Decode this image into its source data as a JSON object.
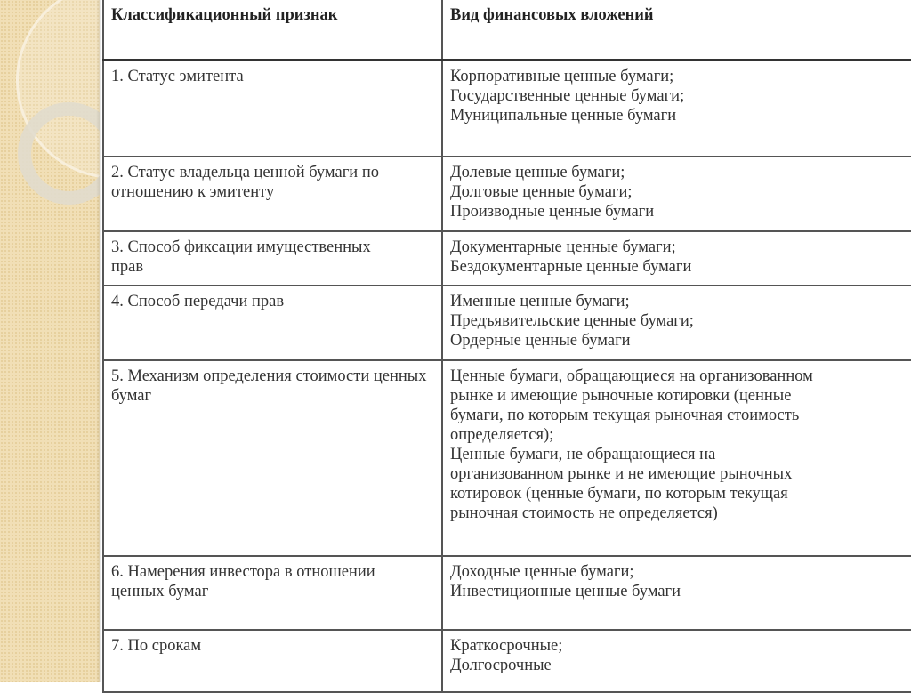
{
  "header": {
    "col1": "Классификационный признак",
    "col2": "Вид финансовых вложений"
  },
  "rows": [
    {
      "criterion": "1. Статус эмитента",
      "types": [
        "Корпоративные ценные бумаги;",
        "Государственные ценные бумаги;",
        "Муниципальные ценные бумаги"
      ]
    },
    {
      "criterion": "2. Статус владельца ценной бумаги по отношению к эмитенту",
      "types": [
        "Долевые ценные бумаги;",
        "Долговые ценные бумаги;",
        "Производные ценные бумаги"
      ]
    },
    {
      "criterion": "3. Способ фиксации имущественных прав",
      "types": [
        "Документарные ценные бумаги;",
        "Бездокументарные ценные бумаги"
      ]
    },
    {
      "criterion": "4. Способ передачи прав",
      "types": [
        "Именные ценные бумаги;",
        "Предъявительские ценные бумаги;",
        "Ордерные ценные бумаги"
      ]
    },
    {
      "criterion": "5. Механизм определения стоимости ценных бумаг",
      "types": [
        "Ценные бумаги, обращающиеся на организованном рынке и имеющие рыночные котировки (ценные бумаги, по которым текущая рыночная стоимость определяется);",
        "Ценные бумаги, не обращающиеся на организованном рынке и не имеющие рыночных котировок (ценные бумаги, по которым текущая рыночная стоимость не определяется)"
      ]
    },
    {
      "criterion": "6. Намерения инвестора в отношении ценных бумаг",
      "types": [
        "Доходные ценные бумаги;",
        "Инвестиционные ценные бумаги"
      ]
    },
    {
      "criterion": "7. По срокам",
      "types": [
        "Краткосрочные;",
        "Долгосрочные"
      ]
    }
  ]
}
